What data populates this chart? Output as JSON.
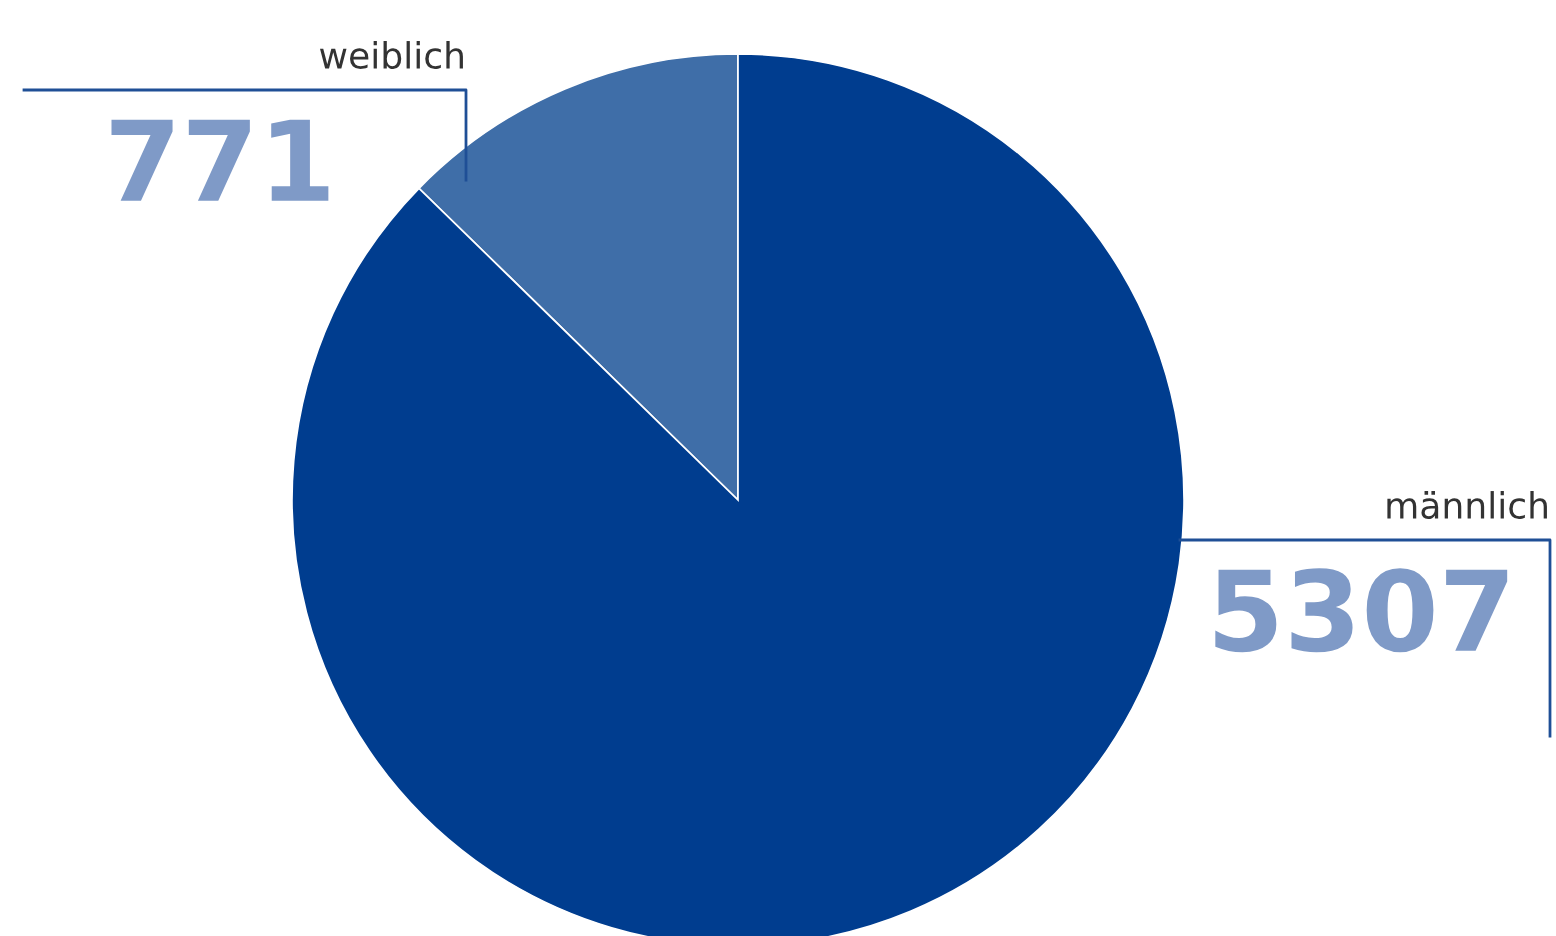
{
  "chart_data": {
    "type": "pie",
    "categories": [
      "weiblich",
      "männlich"
    ],
    "values": [
      771,
      5307
    ],
    "colors": [
      "#3f6ea8",
      "#003d8f"
    ],
    "data_labels": true
  }
}
